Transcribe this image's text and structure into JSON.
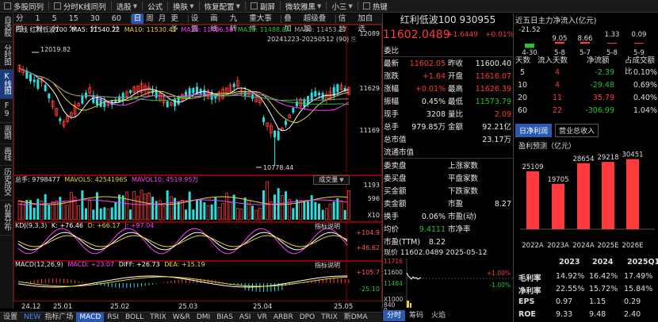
{
  "toolbar": {
    "items": [
      "多股同列",
      "分时K线同列",
      "选股",
      "公式",
      "换肤",
      "恢复配置",
      "副屏",
      "微软雅黑",
      "小三",
      "热键"
    ],
    "caret_items": [
      2,
      4,
      5,
      7,
      8
    ]
  },
  "left_tabs": [
    "自选股",
    "分时图",
    "K线图",
    "F9",
    "周期",
    "画线",
    "历史成交",
    "价量分布"
  ],
  "period_bar": {
    "items": [
      "分时",
      "1分",
      "5分",
      "15分",
      "30分",
      "60分",
      "日",
      "周",
      "月",
      "更多",
      "设置",
      "画线",
      "九转",
      "重大事件",
      "叠加",
      "超级叠加",
      "信息",
      "加自选"
    ],
    "active": "日"
  },
  "chart": {
    "ma_legend": {
      "name": "日线 红利低波100",
      "ma5": "MA5: 11540.22",
      "ma10": "MA10: 11530.41",
      "ma20": "MA20: 11486.58",
      "ma30": "MA30: 11488.84",
      "ma60": "MA60: 11453.27"
    },
    "date_range": "20241223-20250512 (90)",
    "price_labels": [
      "12089",
      "11629",
      "11169"
    ],
    "high_note": "12019.82",
    "low_note": "10778.44",
    "volume_legend": {
      "total": "总手: 9798477",
      "mavol5": "MAVOL5: 4254196S",
      "mavol10": "MAVOL10: 4519.95万"
    },
    "volume_labels": [
      "1193",
      "596",
      "X10"
    ],
    "chengjiao_button": "成交量",
    "kdj_legend": {
      "name": "KDJ(9,3,3)",
      "k": "K: +76.46",
      "d": "D: +66.17",
      "j": "J: +97.04"
    },
    "kdj_labels": [
      "+104.9",
      "+46.62"
    ],
    "indicator_button": "指标说明",
    "macd_legend": {
      "name": "MACD(12,26,9)",
      "macd": "MACD: +23.07",
      "diff": "DIFF: +26.73",
      "dea": "DEA: +15.19"
    },
    "macd_labels": [
      "+105.7",
      "-25.10"
    ],
    "x_labels": [
      "24.12",
      "25.01",
      "25.02",
      "25.03",
      "25.04",
      "25.05"
    ]
  },
  "bottom_bar": {
    "items": [
      "设置",
      "NEW",
      "指标广场",
      "MACD",
      "RSI",
      "BOLL",
      "TRIX",
      "W&R",
      "DMI",
      "BIAS",
      "ASI",
      "VR",
      "ARBR",
      "DPO",
      "TRIX",
      "新DMA"
    ],
    "active": "MACD"
  },
  "quote": {
    "title": "红利低波100 930955",
    "price": "11602.0489",
    "change": "+1.6449",
    "change_pct": "+0.01%",
    "webi_label": "委比",
    "rows": [
      {
        "l1": "最新",
        "v1": "11602.05",
        "l2": "昨收",
        "v2": "11600.40"
      },
      {
        "l1": "涨跌",
        "v1": "+1.64",
        "l2": "开盘",
        "v2": "11616.07"
      },
      {
        "l1": "涨幅",
        "v1": "+0.01%",
        "l2": "最高",
        "v2": "11626.39"
      },
      {
        "l1": "振幅",
        "v1": "0.45%",
        "l2": "最低",
        "v2": "11573.79"
      },
      {
        "l1": "现手",
        "v1": "3208",
        "l2": "量比",
        "v2": "2.09"
      },
      {
        "l1": "总手",
        "v1": "979.85万",
        "l2": "金额",
        "v2": "92.21亿"
      }
    ],
    "total_mv_label": "总市值",
    "total_mv": "23.17万",
    "float_mv_label": "流通市值",
    "stats": [
      {
        "label": "委卖盘",
        "right": "上涨家数"
      },
      {
        "label": "委买盘",
        "right": "平盘家数"
      },
      {
        "label": "买金额",
        "right": "下跌家数"
      },
      {
        "label": "卖金额",
        "right": "市盈",
        "rv": "8.27"
      },
      {
        "label": "换手",
        "value": "0.06%",
        "right": "市盈(动)"
      },
      {
        "label": "均价",
        "value": "9.4111",
        "right": "市净率"
      },
      {
        "label": "市盈(TTM)",
        "value": "8.22"
      }
    ],
    "bottom_truncated": "现价 11602.0489 2025-05-12",
    "mini_labels": [
      "11716",
      "11600",
      "11484",
      "X1000",
      "840",
      "0"
    ],
    "mini_right": [
      "+1.00%",
      "-1.00%"
    ],
    "tabs": [
      "分时",
      "筹码",
      "火焰"
    ],
    "active_tab": "分时"
  },
  "flow": {
    "title": "近五日主力净流入(亿元)",
    "bar_values": [
      "-21.52",
      "9.05",
      "8.66",
      "1.33",
      "0.09"
    ],
    "bar_num_values": [
      -21.52,
      9.05,
      8.66,
      1.33,
      0.09
    ],
    "dates": [
      "4-30",
      "5-8",
      "5-7",
      "5-8",
      "5-9"
    ],
    "table_headers": [
      "天数",
      "流入天数",
      "净流额",
      "占成交额比"
    ],
    "table_rows": [
      {
        "days": "5",
        "in": "4",
        "net": "-2.39",
        "pct": "0.10%"
      },
      {
        "days": "10",
        "in": "4",
        "net": "-29.48",
        "pct": "0.69%"
      },
      {
        "days": "20",
        "in": "11",
        "net": "35.79",
        "pct": "0.40%"
      },
      {
        "days": "60",
        "in": "22",
        "net": "-306.99",
        "pct": "1.04%"
      }
    ],
    "tabs": [
      "日净利润",
      "营业总收入"
    ],
    "active_tab": "日净利润",
    "forecast_label": "盈利预测（亿元）",
    "years": [
      "2022A",
      "2023A",
      "2024A",
      "2025E",
      "2026E"
    ],
    "profit": [
      25109,
      19705,
      28654,
      29218,
      30451
    ],
    "profit_labels": [
      "25109",
      "19705",
      "28654",
      "29218",
      "30451"
    ],
    "fin_headers": [
      "2023",
      "2024",
      "2025Q1"
    ],
    "fin_rows": [
      {
        "label": "毛利率",
        "v": [
          "14.92%",
          "16.42%",
          "17.49%"
        ]
      },
      {
        "label": "净利率",
        "v": [
          "22.55%",
          "15.72%",
          "15.84%"
        ]
      },
      {
        "label": "EPS",
        "v": [
          "0.97",
          "1.15",
          "0.29"
        ]
      },
      {
        "label": "ROE",
        "v": [
          "9.33",
          "9.48",
          "2.40"
        ]
      },
      {
        "label": "ROA",
        "v": [
          "0.85",
          "0.89",
          "0.24"
        ]
      }
    ]
  }
}
